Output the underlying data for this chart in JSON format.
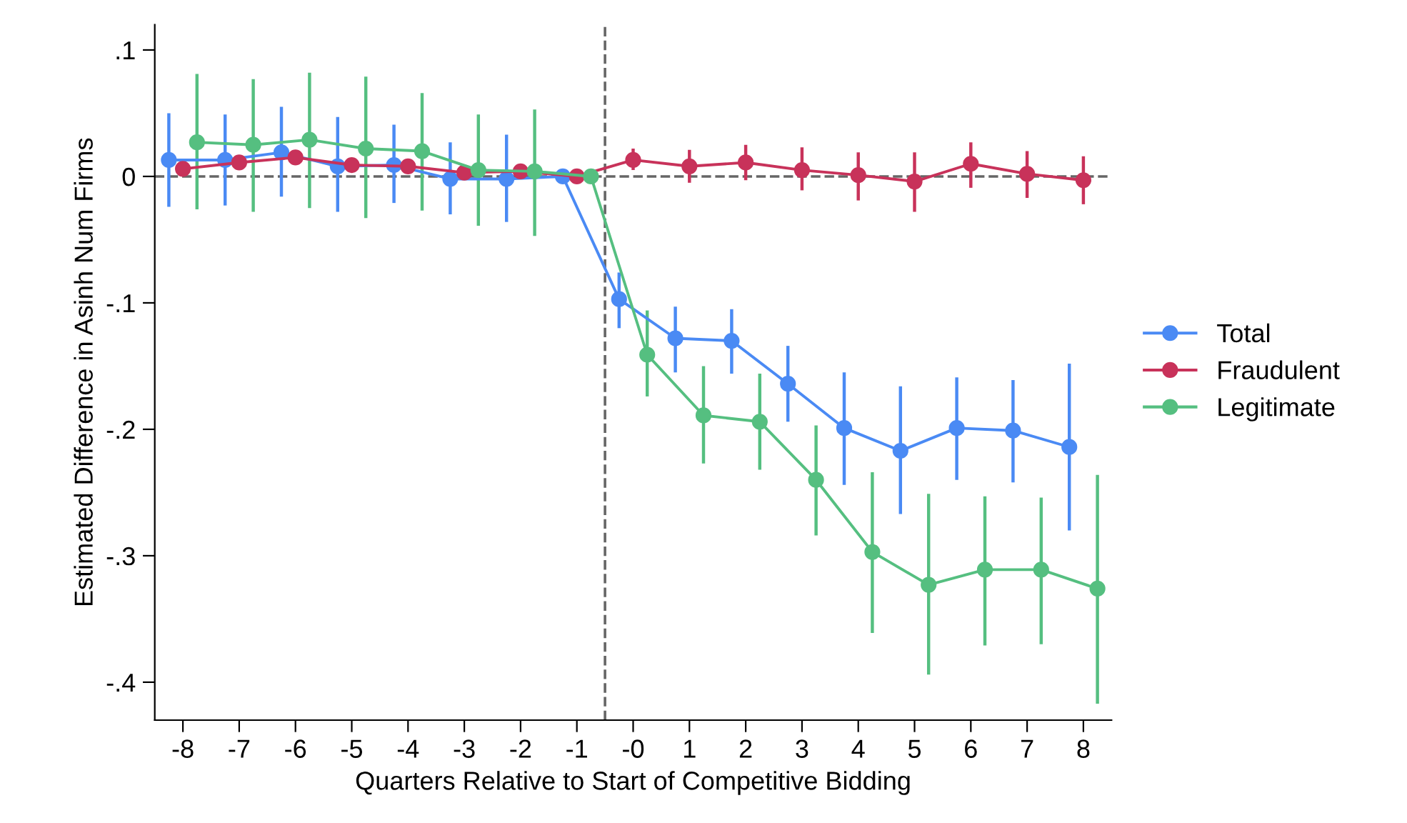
{
  "chart_data": {
    "type": "line",
    "xlabel": "Quarters Relative to Start of Competitive Bidding",
    "ylabel": "Estimated Difference in Asinh Num Firms",
    "xlim": [
      -8.5,
      8.5
    ],
    "xticks": [
      -8,
      -7,
      -6,
      -5,
      -4,
      -3,
      -2,
      -1,
      {
        "value": 0,
        "label": "-0"
      },
      1,
      2,
      3,
      4,
      5,
      6,
      7,
      8
    ],
    "ylim": [
      -0.43,
      0.12
    ],
    "yticks": [
      {
        "value": -0.4,
        "label": "-.4"
      },
      {
        "value": -0.3,
        "label": "-.3"
      },
      {
        "value": -0.2,
        "label": "-.2"
      },
      {
        "value": -0.1,
        "label": "-.1"
      },
      0,
      {
        "value": 0.1,
        "label": ".1"
      }
    ],
    "grid": false,
    "legend": "right",
    "marker": "circle",
    "line_style": "solid",
    "ref_lines": [
      {
        "axis": "y",
        "value": 0,
        "label": null,
        "color": "#666666",
        "line_style": "dashed"
      },
      {
        "axis": "x",
        "value": -0.5,
        "label": null,
        "color": "#666666",
        "line_style": "dashed"
      }
    ],
    "series": [
      {
        "name": "Total",
        "color": "#4a8af4",
        "x": [
          -8.25,
          -7.25,
          -6.25,
          -5.25,
          -4.25,
          -3.25,
          -2.25,
          -1.25,
          -0.25,
          0.75,
          1.75,
          2.75,
          3.75,
          4.75,
          5.75,
          6.75,
          7.75
        ],
        "values": [
          0.013,
          0.013,
          0.019,
          0.008,
          0.009,
          -0.002,
          -0.002,
          0,
          -0.097,
          -0.128,
          -0.13,
          -0.164,
          -0.199,
          -0.217,
          -0.199,
          -0.201,
          -0.214
        ],
        "errors": [
          [
            -0.024,
            0.05
          ],
          [
            -0.023,
            0.049
          ],
          [
            -0.016,
            0.055
          ],
          [
            -0.028,
            0.047
          ],
          [
            -0.021,
            0.041
          ],
          [
            -0.03,
            0.027
          ],
          [
            -0.036,
            0.033
          ],
          null,
          [
            -0.12,
            -0.076
          ],
          [
            -0.155,
            -0.103
          ],
          [
            -0.156,
            -0.105
          ],
          [
            -0.194,
            -0.134
          ],
          [
            -0.244,
            -0.155
          ],
          [
            -0.267,
            -0.166
          ],
          [
            -0.24,
            -0.159
          ],
          [
            -0.242,
            -0.161
          ],
          [
            -0.28,
            -0.148
          ]
        ]
      },
      {
        "name": "Fraudulent",
        "color": "#c8325a",
        "x": [
          -8,
          -7,
          -6,
          -5,
          -4,
          -3,
          -2,
          -1,
          0,
          1,
          2,
          3,
          4,
          5,
          6,
          7,
          8
        ],
        "values": [
          0.006,
          0.011,
          0.015,
          0.009,
          0.008,
          0.003,
          0.004,
          0,
          0.013,
          0.008,
          0.011,
          0.005,
          0.001,
          -0.004,
          0.01,
          0.002,
          -0.003
        ],
        "errors": [
          null,
          null,
          null,
          null,
          null,
          null,
          null,
          null,
          [
            0.005,
            0.022
          ],
          [
            -0.005,
            0.021
          ],
          [
            -0.003,
            0.025
          ],
          [
            -0.011,
            0.023
          ],
          [
            -0.019,
            0.019
          ],
          [
            -0.028,
            0.019
          ],
          [
            -0.009,
            0.027
          ],
          [
            -0.017,
            0.02
          ],
          [
            -0.022,
            0.016
          ]
        ]
      },
      {
        "name": "Legitimate",
        "color": "#55bf80",
        "x": [
          -7.75,
          -6.75,
          -5.75,
          -4.75,
          -3.75,
          -2.75,
          -1.75,
          -0.75,
          0.25,
          1.25,
          2.25,
          3.25,
          4.25,
          5.25,
          6.25,
          7.25,
          8.25
        ],
        "values": [
          0.027,
          0.025,
          0.029,
          0.022,
          0.02,
          0.005,
          0.004,
          0,
          -0.141,
          -0.189,
          -0.194,
          -0.24,
          -0.297,
          -0.323,
          -0.311,
          -0.311,
          -0.326
        ],
        "errors": [
          [
            -0.026,
            0.081
          ],
          [
            -0.028,
            0.077
          ],
          [
            -0.025,
            0.082
          ],
          [
            -0.033,
            0.079
          ],
          [
            -0.027,
            0.066
          ],
          [
            -0.039,
            0.049
          ],
          [
            -0.047,
            0.053
          ],
          null,
          [
            -0.174,
            -0.106
          ],
          [
            -0.227,
            -0.15
          ],
          [
            -0.232,
            -0.156
          ],
          [
            -0.284,
            -0.197
          ],
          [
            -0.361,
            -0.234
          ],
          [
            -0.394,
            -0.251
          ],
          [
            -0.371,
            -0.253
          ],
          [
            -0.37,
            -0.254
          ],
          [
            -0.417,
            -0.236
          ]
        ]
      }
    ]
  }
}
